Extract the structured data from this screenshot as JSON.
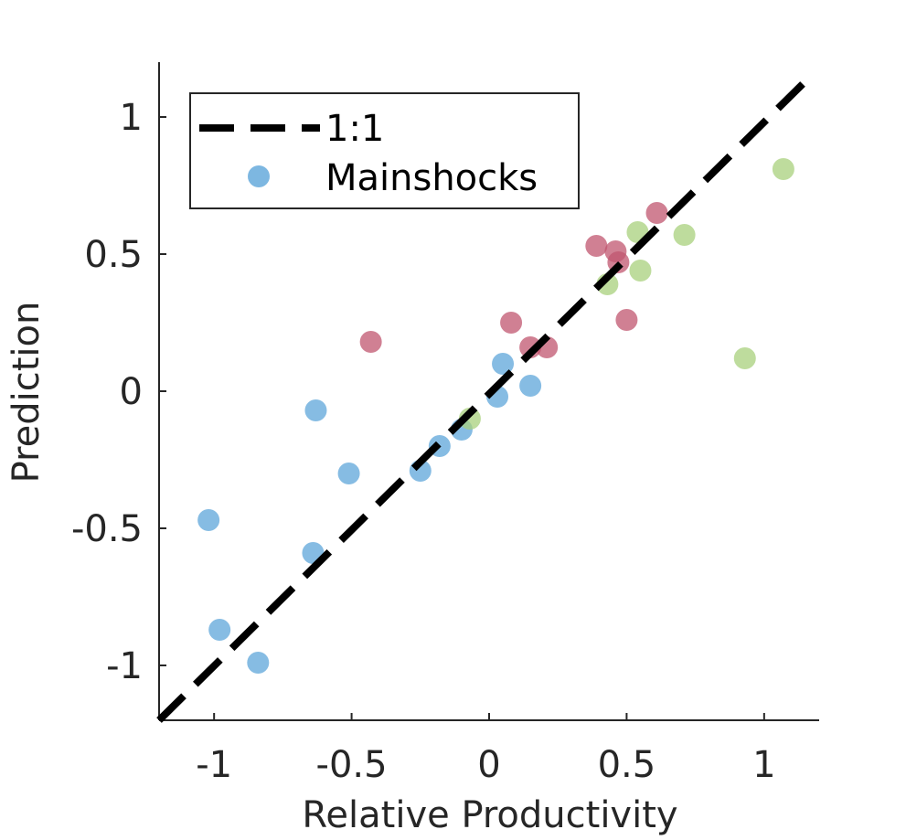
{
  "chart_data": {
    "type": "scatter",
    "xlabel": "Relative Productivity",
    "ylabel": "Prediction",
    "xlim": [
      -1.2,
      1.2
    ],
    "ylim": [
      -1.2,
      1.2
    ],
    "xticks": [
      -1,
      -0.5,
      0,
      0.5,
      1
    ],
    "yticks": [
      -1,
      -0.5,
      0,
      0.5,
      1
    ],
    "xtick_labels": [
      "-1",
      "-0.5",
      "0",
      "0.5",
      "1"
    ],
    "ytick_labels": [
      "-1",
      "-0.5",
      "0",
      "0.5",
      "1"
    ],
    "reference_line": {
      "name": "1:1",
      "style": "dashed",
      "color": "#000000",
      "from": [
        -1.2,
        -1.2
      ],
      "to": [
        1.15,
        1.13
      ]
    },
    "legend": {
      "placement": "top-left",
      "entries": [
        "1:1",
        "Mainshocks"
      ]
    },
    "series": [
      {
        "name": "Mainshocks",
        "color": "#5da5da",
        "points": [
          [
            -1.02,
            -0.47
          ],
          [
            -0.98,
            -0.87
          ],
          [
            -0.84,
            -0.99
          ],
          [
            -0.64,
            -0.59
          ],
          [
            -0.63,
            -0.07
          ],
          [
            -0.51,
            -0.3
          ],
          [
            -0.25,
            -0.29
          ],
          [
            -0.18,
            -0.2
          ],
          [
            -0.1,
            -0.14
          ],
          [
            0.03,
            -0.02
          ],
          [
            0.05,
            0.1
          ],
          [
            0.15,
            0.02
          ]
        ]
      },
      {
        "color": "#c0566f",
        "points": [
          [
            -0.43,
            0.18
          ],
          [
            0.08,
            0.25
          ],
          [
            0.15,
            0.16
          ],
          [
            0.21,
            0.16
          ],
          [
            0.39,
            0.53
          ],
          [
            0.46,
            0.51
          ],
          [
            0.47,
            0.47
          ],
          [
            0.5,
            0.26
          ],
          [
            0.61,
            0.65
          ]
        ]
      },
      {
        "color": "#a8d07c",
        "points": [
          [
            -0.07,
            -0.1
          ],
          [
            0.43,
            0.39
          ],
          [
            0.54,
            0.58
          ],
          [
            0.55,
            0.44
          ],
          [
            0.71,
            0.57
          ],
          [
            0.93,
            0.12
          ],
          [
            1.07,
            0.81
          ]
        ]
      }
    ]
  }
}
